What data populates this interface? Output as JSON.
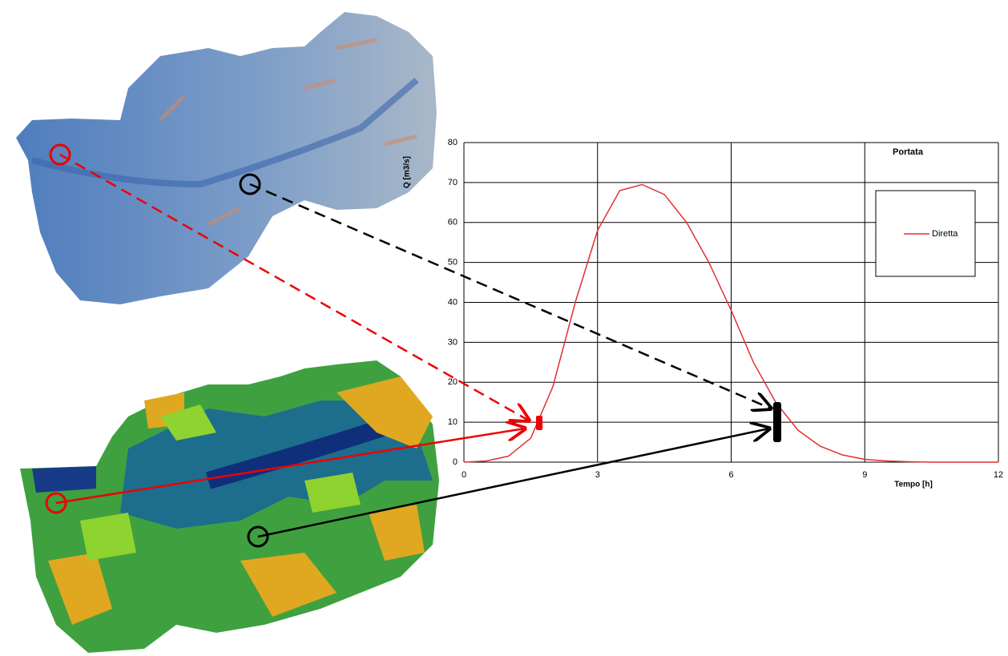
{
  "chart_data": {
    "type": "line",
    "title": "Portata",
    "x_label": "Tempo [h]",
    "y_label": "Q [m3/s]",
    "x": [
      0,
      0.5,
      1,
      1.5,
      2,
      2.5,
      3,
      3.5,
      4,
      4.5,
      5,
      5.5,
      6,
      6.5,
      7,
      7.5,
      8,
      8.5,
      9,
      9.5,
      10,
      10.5,
      11,
      11.5,
      12
    ],
    "series": [
      {
        "name": "Diretta",
        "color": "#e03030",
        "values": [
          0,
          0.3,
          1.5,
          6,
          19,
          40,
          58,
          68,
          69.5,
          67,
          60,
          50,
          38,
          25,
          15,
          8,
          4,
          1.8,
          0.7,
          0.3,
          0.1,
          0,
          0,
          0,
          0
        ]
      }
    ],
    "xlim": [
      0,
      12
    ],
    "xticks": [
      0,
      3,
      6,
      9,
      12
    ],
    "ylim": [
      0,
      80
    ],
    "yticks": [
      0,
      10,
      20,
      30,
      40,
      50,
      60,
      70,
      80
    ],
    "grid": true,
    "legend": "right"
  }
}
